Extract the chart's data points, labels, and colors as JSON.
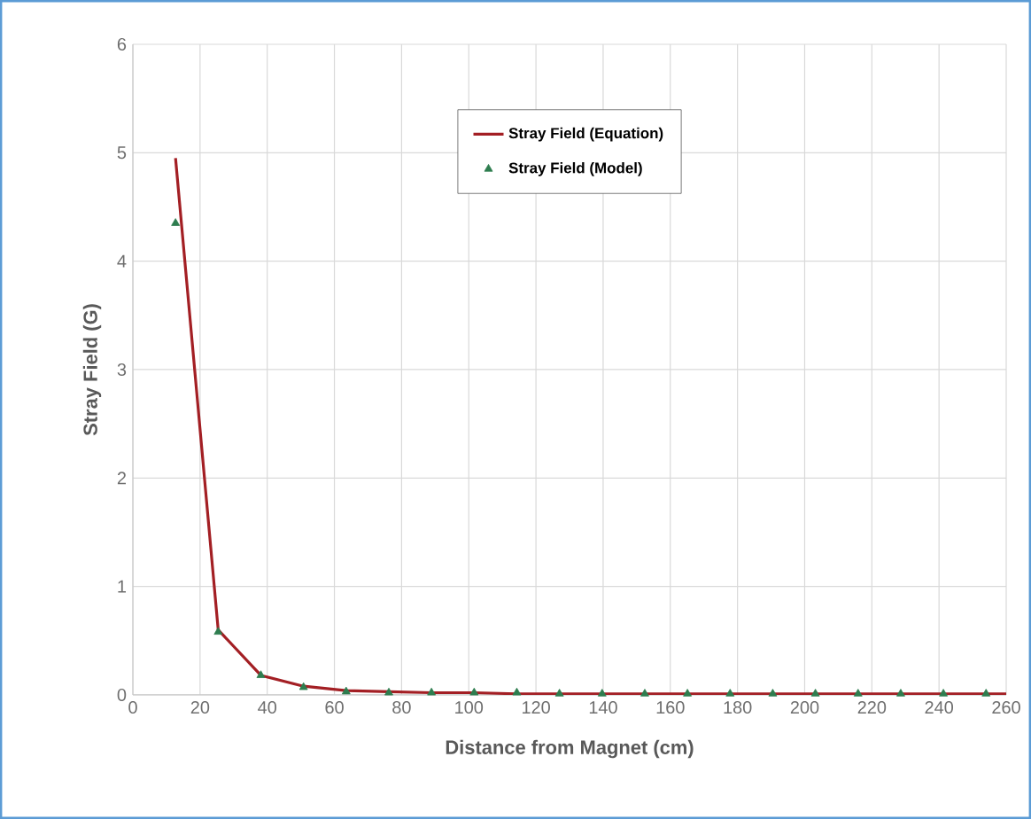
{
  "chart_data": {
    "type": "line",
    "xlabel": "Distance from Magnet (cm)",
    "ylabel": "Stray Field (G)",
    "xlim": [
      0,
      260
    ],
    "xticks": [
      0,
      20,
      40,
      60,
      80,
      100,
      120,
      140,
      160,
      180,
      200,
      220,
      240,
      260
    ],
    "ylim": [
      0,
      6
    ],
    "yticks": [
      0,
      1,
      2,
      3,
      4,
      5,
      6
    ],
    "grid": true,
    "legend": "top",
    "series": [
      {
        "name": "Stray Field (Equation)",
        "color": "#a31f24",
        "marker": "none",
        "x": [
          12.7,
          25.4,
          38.1,
          50.8,
          63.5,
          76.2,
          88.9,
          101.6,
          114.3,
          127,
          139.7,
          152.4,
          165.1,
          177.8,
          190.5,
          203.2,
          215.9,
          228.6,
          241.3,
          254,
          260
        ],
        "values": [
          4.95,
          0.6,
          0.18,
          0.08,
          0.04,
          0.03,
          0.02,
          0.02,
          0.01,
          0.01,
          0.01,
          0.01,
          0.01,
          0.01,
          0.01,
          0.01,
          0.01,
          0.01,
          0.01,
          0.01,
          0.01
        ]
      },
      {
        "name": "Stray Field (Model)",
        "type": "scatter",
        "color": "#2e7d4f",
        "marker": "triangle",
        "x": [
          12.7,
          25.4,
          38.1,
          50.8,
          63.5,
          76.2,
          88.9,
          101.6,
          114.3,
          127,
          139.7,
          152.4,
          165.1,
          177.8,
          190.5,
          203.2,
          215.9,
          228.6,
          241.3,
          254
        ],
        "values": [
          4.35,
          0.58,
          0.18,
          0.07,
          0.03,
          0.02,
          0.02,
          0.02,
          0.02,
          0.01,
          0.01,
          0.01,
          0.01,
          0.01,
          0.01,
          0.01,
          0.01,
          0.01,
          0.01,
          0.01
        ]
      }
    ]
  }
}
